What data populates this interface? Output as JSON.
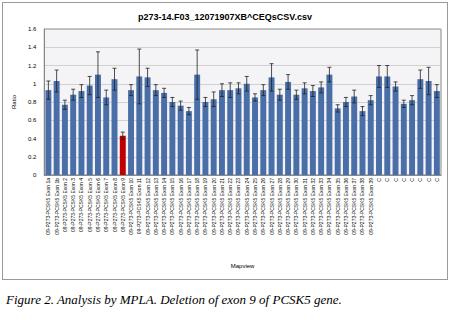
{
  "caption": "Figure 2. Analysis by MPLA. Deletion of exon 9 of PCSK5 gene.",
  "chart_data": {
    "type": "bar",
    "title": "p273-14.F03_12071907XB^CEQsCSV.csv",
    "x_label": "Mapview",
    "y_label": "Ratio",
    "categories": [
      "09-P273-PCSK5 Exon 1a",
      "09-P273-PCSK5 Exon 1b",
      "09-P273-PCSK5 Exon 2",
      "09-P273-PCSK5 Exon 3",
      "09-P273-PCSK5 Exon 4",
      "09-P273-PCSK5 Exon 5",
      "09-P273-PCSK5 Exon 6",
      "09-P273-PCSK5 Exon 7",
      "09-P273-PCSK5 Exon 8",
      "09-P273-PCSK5 Exon 9",
      "09-P273-PCSK5 Exon 10",
      "09-P273-PCSK5 Exon 11",
      "09-P273-PCSK5 Exon 12",
      "09-P273-PCSK5 Exon 13",
      "09-P273-PCSK5 Exon 14",
      "09-P273-PCSK5 Exon 15",
      "09-P273-PCSK5 Exon 16",
      "09-P273-PCSK5 Exon 17",
      "09-P273-PCSK5 Exon 18",
      "09-P273-PCSK5 Exon 19",
      "09-P273-PCSK5 Exon 20",
      "09-P273-PCSK5 Exon 21",
      "09-P273-PCSK5 Exon 22",
      "09-P273-PCSK5 Exon 23",
      "09-P273-PCSK5 Exon 24",
      "09-P273-PCSK5 Exon 25",
      "09-P273-PCSK5 Exon 26",
      "09-P273-PCSK5 Exon 27",
      "09-P273-PCSK5 Exon 28",
      "09-P273-PCSK5 Exon 29",
      "09-P273-PCSK5 Exon 30",
      "09-P273-PCSK5 Exon 31",
      "09-P273-PCSK5 Exon 32",
      "09-P273-PCSK5 Exon 33",
      "09-P273-PCSK5 Exon 34",
      "09-P273-PCSK5 Exon 35",
      "09-P273-PCSK5 Exon 36",
      "09-P273-PCSK5 Exon 37",
      "09-P273-PCSK5 Exon 38",
      "09-P273-PCSK5 Exon 39",
      "C",
      "C",
      "C",
      "C",
      "C",
      "C",
      "C",
      "C"
    ],
    "values": [
      0.93,
      1.03,
      0.77,
      0.88,
      0.92,
      0.98,
      1.1,
      0.85,
      1.05,
      0.43,
      0.93,
      1.08,
      1.07,
      0.93,
      0.9,
      0.8,
      0.76,
      0.7,
      1.1,
      0.8,
      0.83,
      0.93,
      0.93,
      0.95,
      1.0,
      0.85,
      0.93,
      1.07,
      0.88,
      1.02,
      0.88,
      0.95,
      0.92,
      0.96,
      1.1,
      0.73,
      0.8,
      0.86,
      0.7,
      0.82,
      1.08,
      1.08,
      0.97,
      0.78,
      0.82,
      1.05,
      1.03,
      0.92
    ],
    "errors": [
      0.1,
      0.12,
      0.05,
      0.06,
      0.07,
      0.1,
      0.25,
      0.08,
      0.12,
      0.04,
      0.06,
      0.3,
      0.1,
      0.06,
      0.05,
      0.05,
      0.05,
      0.04,
      0.27,
      0.05,
      0.08,
      0.07,
      0.08,
      0.06,
      0.08,
      0.04,
      0.06,
      0.15,
      0.06,
      0.08,
      0.05,
      0.06,
      0.06,
      0.06,
      0.08,
      0.04,
      0.05,
      0.07,
      0.05,
      0.05,
      0.12,
      0.12,
      0.05,
      0.04,
      0.05,
      0.1,
      0.15,
      0.07
    ],
    "colors": [
      "#4a6fa8",
      "#4a6fa8",
      "#4a6fa8",
      "#4a6fa8",
      "#4a6fa8",
      "#4a6fa8",
      "#4a6fa8",
      "#4a6fa8",
      "#4a6fa8",
      "#c00000",
      "#4a6fa8",
      "#4a6fa8",
      "#4a6fa8",
      "#4a6fa8",
      "#4a6fa8",
      "#4a6fa8",
      "#4a6fa8",
      "#4a6fa8",
      "#4a6fa8",
      "#4a6fa8",
      "#4a6fa8",
      "#4a6fa8",
      "#4a6fa8",
      "#4a6fa8",
      "#4a6fa8",
      "#4a6fa8",
      "#4a6fa8",
      "#4a6fa8",
      "#4a6fa8",
      "#4a6fa8",
      "#4a6fa8",
      "#4a6fa8",
      "#4a6fa8",
      "#4a6fa8",
      "#4a6fa8",
      "#4a6fa8",
      "#4a6fa8",
      "#4a6fa8",
      "#4a6fa8",
      "#4a6fa8",
      "#4a6fa8",
      "#4a6fa8",
      "#4a6fa8",
      "#4a6fa8",
      "#4a6fa8",
      "#4a6fa8",
      "#4a6fa8",
      "#4a6fa8"
    ],
    "ylim": [
      0,
      1.6
    ],
    "yticks": [
      0,
      0.2,
      0.4,
      0.6,
      0.8,
      1,
      1.2,
      1.4,
      1.6
    ],
    "grid": true
  }
}
